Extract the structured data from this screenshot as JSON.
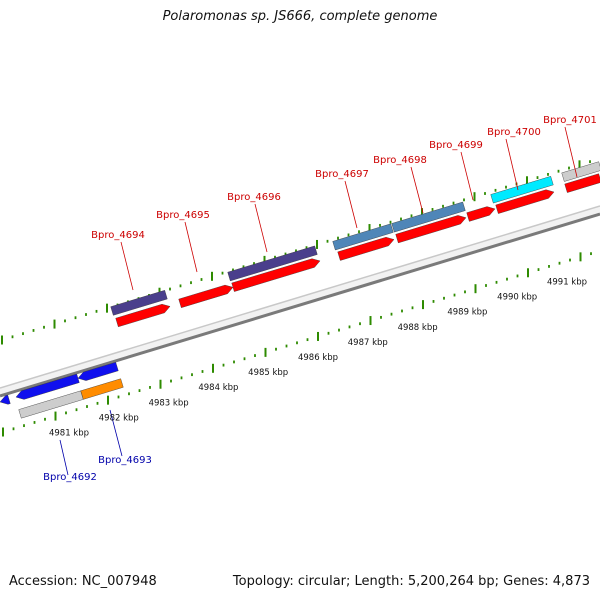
{
  "title": "Polaromonas sp. JS666, complete genome",
  "footer": {
    "accession": "Accession: NC_007948",
    "stats": "Topology: circular; Length: 5,200,264 bp; Genes: 4,873"
  },
  "colors": {
    "forward_label": "#cc0000",
    "reverse_label": "#0000aa",
    "tick": "#2e8b00",
    "backbone": "#8c8c8c",
    "cds": "#ff0000",
    "gene_purple": "#4a3f8c",
    "gene_steelblue": "#4f86b8",
    "gene_cyan": "#00eaff",
    "gene_grey": "#cdcdcd",
    "gene_blue": "#1010ee",
    "gene_orange": "#ff8c00"
  },
  "kbp_labels": [
    "4981 kbp",
    "4982 kbp",
    "4983 kbp",
    "4984 kbp",
    "4985 kbp",
    "4986 kbp",
    "4987 kbp",
    "4988 kbp",
    "4989 kbp",
    "4990 kbp",
    "4991 kbp"
  ],
  "forward_gene_labels": [
    "Bpro_4694",
    "Bpro_4695",
    "Bpro_4696",
    "Bpro_4697",
    "Bpro_4698",
    "Bpro_4699",
    "Bpro_4700",
    "Bpro_4701"
  ],
  "reverse_gene_labels": [
    "Bpro_4692",
    "Bpro_4693"
  ]
}
